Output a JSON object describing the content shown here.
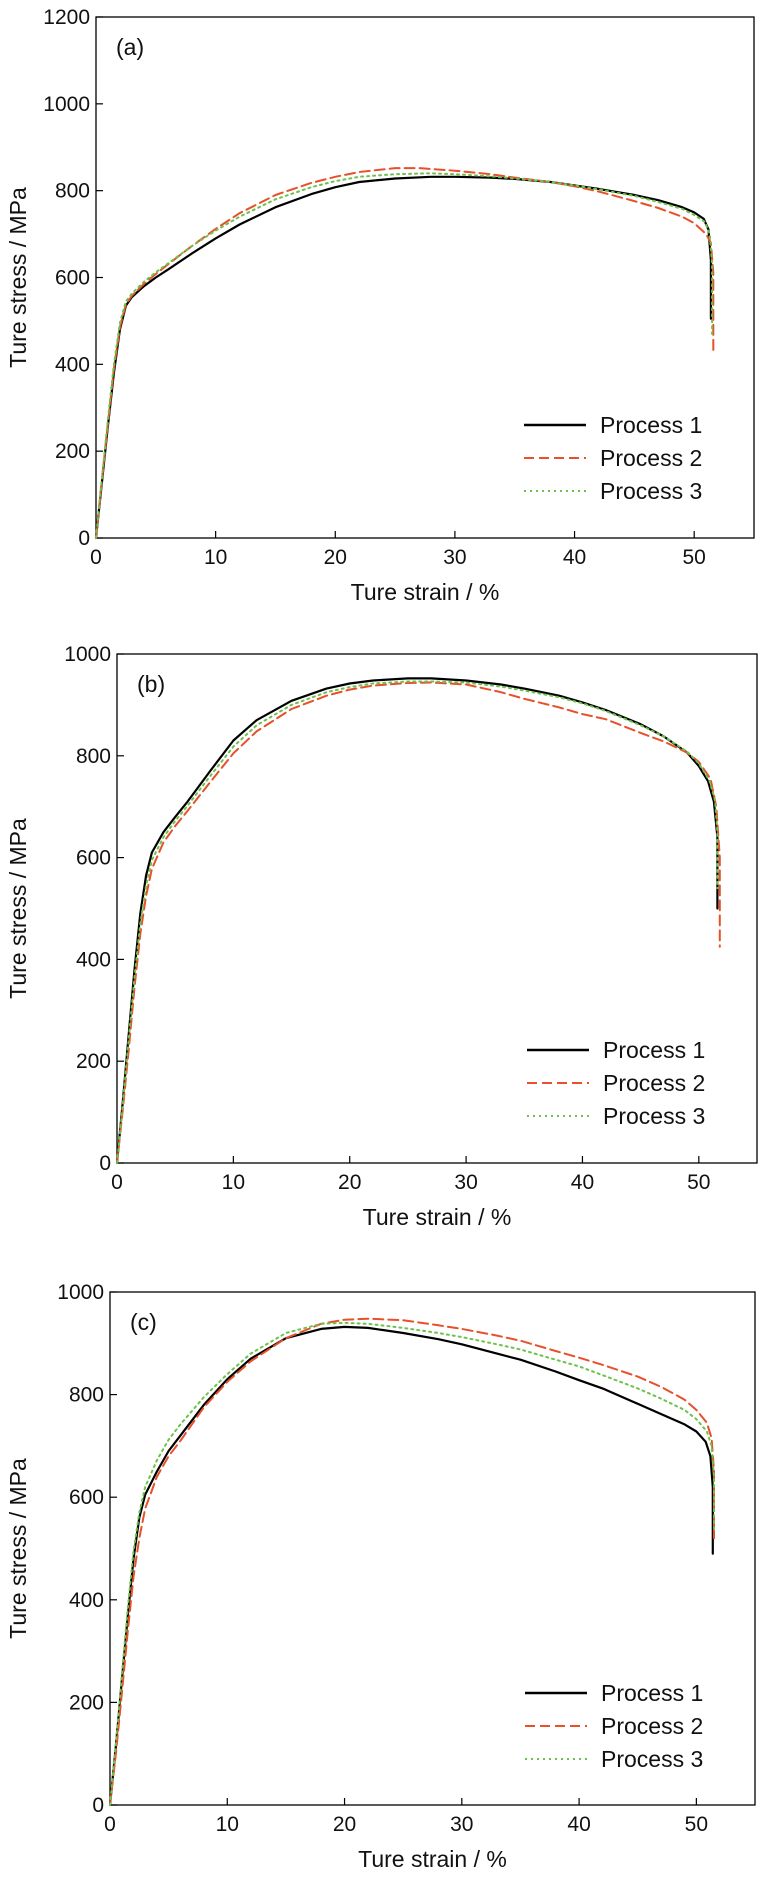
{
  "chart_data": [
    {
      "type": "line",
      "panel_label": "(a)",
      "xlabel": "Ture strain / %",
      "ylabel": "Ture stress / MPa",
      "xlim": [
        0,
        55
      ],
      "ylim": [
        0,
        1200
      ],
      "xticks": [
        0,
        10,
        20,
        30,
        40,
        50
      ],
      "yticks": [
        0,
        200,
        400,
        600,
        800,
        1000,
        1200
      ],
      "legend_position": "bottom-right",
      "grid": false,
      "series": [
        {
          "name": "Process 1",
          "color": "#000000",
          "style": "solid",
          "x": [
            0,
            0.5,
            1.0,
            1.5,
            2.0,
            2.5,
            3.0,
            4,
            5,
            6,
            8,
            10,
            12,
            15,
            18,
            20,
            22,
            25,
            28,
            30,
            33,
            35,
            38,
            40,
            42,
            45,
            47,
            49,
            50,
            50.8,
            51.2,
            51.4,
            51.4
          ],
          "y": [
            0,
            130,
            260,
            380,
            480,
            535,
            555,
            580,
            600,
            618,
            655,
            690,
            722,
            762,
            792,
            808,
            820,
            828,
            832,
            832,
            830,
            827,
            820,
            812,
            804,
            790,
            778,
            762,
            750,
            735,
            710,
            640,
            505
          ]
        },
        {
          "name": "Process 2",
          "color": "#e8502a",
          "style": "dashed",
          "x": [
            0,
            0.5,
            1.0,
            1.5,
            2.0,
            2.5,
            3.0,
            4,
            5,
            6,
            8,
            10,
            12,
            15,
            18,
            20,
            22,
            25,
            27,
            30,
            33,
            35,
            38,
            40,
            42,
            45,
            47,
            49,
            50,
            51.0,
            51.4,
            51.6,
            51.6
          ],
          "y": [
            0,
            135,
            265,
            390,
            485,
            538,
            558,
            585,
            608,
            630,
            672,
            712,
            748,
            790,
            818,
            832,
            843,
            852,
            852,
            846,
            838,
            830,
            820,
            810,
            798,
            776,
            760,
            740,
            725,
            700,
            680,
            610,
            430
          ]
        },
        {
          "name": "Process 3",
          "color": "#6cc24a",
          "style": "dotted",
          "x": [
            0,
            0.5,
            1.0,
            1.5,
            2.0,
            2.5,
            3.0,
            4,
            5,
            6,
            8,
            10,
            12,
            15,
            18,
            20,
            22,
            25,
            28,
            30,
            33,
            35,
            38,
            40,
            42,
            45,
            47,
            49,
            50,
            50.9,
            51.3,
            51.5,
            51.5
          ],
          "y": [
            0,
            140,
            275,
            400,
            495,
            545,
            563,
            590,
            612,
            632,
            672,
            708,
            740,
            780,
            808,
            822,
            832,
            838,
            840,
            838,
            833,
            828,
            820,
            812,
            803,
            788,
            774,
            758,
            744,
            728,
            700,
            630,
            470
          ]
        }
      ]
    },
    {
      "type": "line",
      "panel_label": "(b)",
      "xlabel": "Ture strain / %",
      "ylabel": "Ture stress / MPa",
      "xlim": [
        0,
        55
      ],
      "ylim": [
        0,
        1000
      ],
      "xticks": [
        0,
        10,
        20,
        30,
        40,
        50
      ],
      "yticks": [
        0,
        200,
        400,
        600,
        800,
        1000
      ],
      "legend_position": "bottom-right",
      "grid": false,
      "series": [
        {
          "name": "Process 1",
          "color": "#000000",
          "style": "solid",
          "x": [
            0,
            0.5,
            1.0,
            1.5,
            2.0,
            2.5,
            3.0,
            4,
            5,
            6,
            8,
            10,
            12,
            15,
            18,
            20,
            22,
            25,
            27,
            30,
            33,
            35,
            38,
            40,
            42,
            45,
            47,
            49,
            50,
            50.8,
            51.3,
            51.6,
            51.6
          ],
          "y": [
            0,
            120,
            250,
            380,
            490,
            565,
            610,
            650,
            680,
            708,
            770,
            830,
            870,
            908,
            932,
            942,
            948,
            952,
            952,
            948,
            940,
            932,
            918,
            905,
            890,
            862,
            838,
            806,
            780,
            750,
            710,
            640,
            500
          ]
        },
        {
          "name": "Process 2",
          "color": "#e8502a",
          "style": "dashed",
          "x": [
            0,
            0.5,
            1.0,
            1.5,
            2.0,
            2.5,
            3.0,
            4,
            5,
            6,
            8,
            10,
            12,
            15,
            18,
            20,
            22,
            25,
            27,
            30,
            33,
            35,
            38,
            40,
            42,
            45,
            47,
            49,
            50,
            51.0,
            51.5,
            51.8,
            51.8
          ],
          "y": [
            0,
            105,
            220,
            345,
            450,
            525,
            578,
            630,
            662,
            690,
            748,
            805,
            848,
            892,
            918,
            930,
            938,
            943,
            944,
            940,
            925,
            912,
            895,
            882,
            872,
            845,
            828,
            806,
            788,
            755,
            700,
            600,
            425
          ]
        },
        {
          "name": "Process 3",
          "color": "#6cc24a",
          "style": "dotted",
          "x": [
            0,
            0.5,
            1.0,
            1.5,
            2.0,
            2.5,
            3.0,
            4,
            5,
            6,
            8,
            10,
            12,
            15,
            18,
            20,
            22,
            25,
            27,
            30,
            33,
            35,
            38,
            40,
            42,
            45,
            47,
            49,
            50,
            50.9,
            51.4,
            51.6,
            51.6
          ],
          "y": [
            0,
            115,
            240,
            365,
            470,
            545,
            595,
            640,
            672,
            700,
            760,
            818,
            860,
            900,
            925,
            935,
            942,
            946,
            946,
            944,
            936,
            928,
            915,
            903,
            888,
            860,
            838,
            808,
            785,
            752,
            712,
            650,
            540
          ]
        }
      ]
    },
    {
      "type": "line",
      "panel_label": "(c)",
      "xlabel": "Ture strain / %",
      "ylabel": "Ture stress / MPa",
      "xlim": [
        0,
        55
      ],
      "ylim": [
        0,
        1000
      ],
      "xticks": [
        0,
        10,
        20,
        30,
        40,
        50
      ],
      "yticks": [
        0,
        200,
        400,
        600,
        800,
        1000
      ],
      "legend_position": "bottom-right",
      "grid": false,
      "series": [
        {
          "name": "Process 1",
          "color": "#000000",
          "style": "solid",
          "x": [
            0,
            0.5,
            1.0,
            1.5,
            2.0,
            2.5,
            3.0,
            4,
            5,
            6,
            8,
            10,
            12,
            15,
            18,
            20,
            22,
            25,
            28,
            30,
            33,
            35,
            38,
            40,
            42,
            45,
            47,
            49,
            50,
            50.8,
            51.2,
            51.4,
            51.4
          ],
          "y": [
            0,
            115,
            240,
            365,
            480,
            560,
            605,
            650,
            690,
            720,
            780,
            830,
            870,
            910,
            928,
            932,
            930,
            920,
            908,
            898,
            880,
            868,
            845,
            828,
            812,
            782,
            762,
            742,
            728,
            708,
            680,
            620,
            490
          ]
        },
        {
          "name": "Process 2",
          "color": "#e8502a",
          "style": "dashed",
          "x": [
            0,
            0.5,
            1.0,
            1.5,
            2.0,
            2.5,
            3.0,
            4,
            5,
            6,
            8,
            10,
            12,
            15,
            18,
            20,
            22,
            25,
            28,
            30,
            33,
            35,
            38,
            40,
            42,
            45,
            47,
            49,
            50,
            50.9,
            51.3,
            51.5,
            51.5
          ],
          "y": [
            0,
            100,
            215,
            335,
            445,
            520,
            578,
            640,
            680,
            710,
            775,
            825,
            865,
            910,
            938,
            946,
            948,
            945,
            935,
            928,
            915,
            905,
            885,
            872,
            858,
            835,
            815,
            790,
            770,
            745,
            715,
            650,
            520
          ]
        },
        {
          "name": "Process 3",
          "color": "#6cc24a",
          "style": "dotted",
          "x": [
            0,
            0.5,
            1.0,
            1.5,
            2.0,
            2.5,
            3.0,
            4,
            5,
            6,
            8,
            10,
            12,
            15,
            18,
            20,
            22,
            25,
            28,
            30,
            33,
            35,
            38,
            40,
            42,
            45,
            47,
            49,
            50,
            50.9,
            51.3,
            51.5,
            51.5
          ],
          "y": [
            0,
            120,
            250,
            380,
            495,
            570,
            620,
            672,
            712,
            742,
            795,
            840,
            880,
            920,
            938,
            940,
            938,
            930,
            920,
            912,
            898,
            888,
            868,
            855,
            838,
            812,
            792,
            770,
            752,
            728,
            700,
            640,
            530
          ]
        }
      ]
    }
  ]
}
